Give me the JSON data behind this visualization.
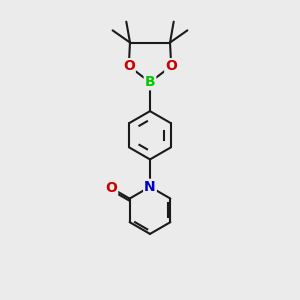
{
  "bg_color": "#ebebeb",
  "bond_color": "#1a1a1a",
  "B_color": "#00cc00",
  "O_color": "#cc0000",
  "N_color": "#0000cc",
  "O_label": "O",
  "B_label": "B",
  "N_label": "N",
  "line_width": 1.5,
  "font_size_atom": 10,
  "fig_width": 3.0,
  "fig_height": 3.0,
  "dpi": 100
}
